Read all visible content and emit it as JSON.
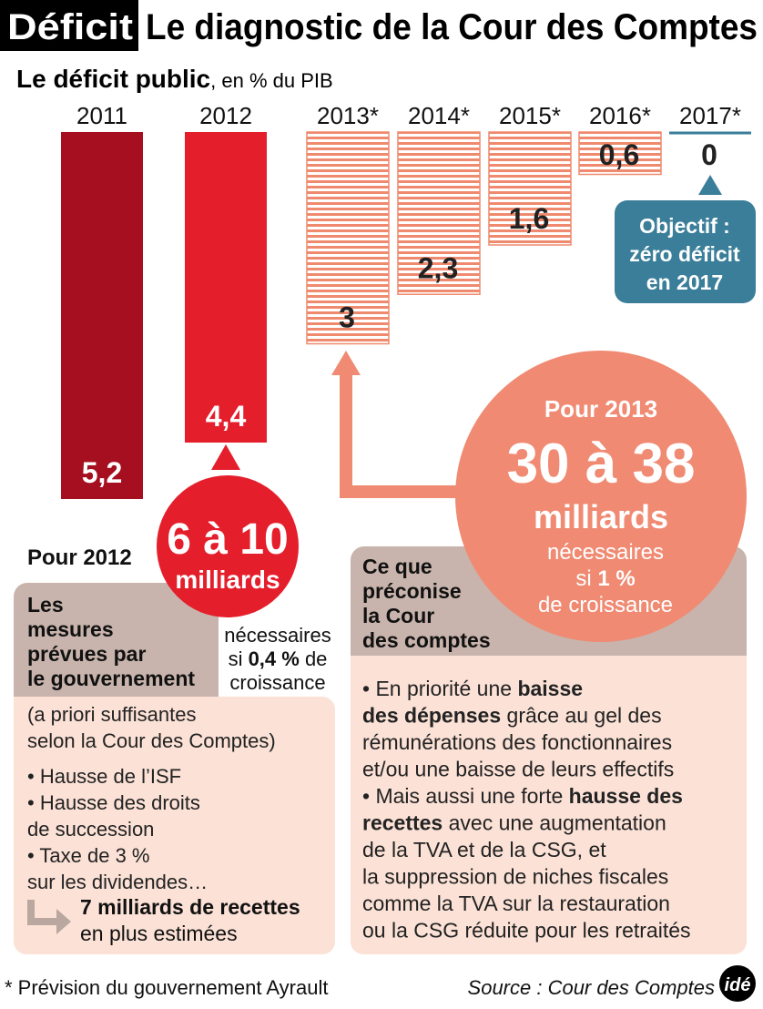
{
  "header": {
    "tag": "Déficit",
    "title": "Le diagnostic de la Cour des Comptes"
  },
  "chart_data": {
    "type": "bar",
    "title": "Le déficit public",
    "subtitle": ", en % du PIB",
    "categories": [
      "2011",
      "2012",
      "2013*",
      "2014*",
      "2015*",
      "2016*",
      "2017*"
    ],
    "values": [
      5.2,
      4.4,
      3,
      2.3,
      1.6,
      0.6,
      0
    ],
    "value_labels": [
      "5,2",
      "4,4",
      "3",
      "2,3",
      "1,6",
      "0,6",
      "0"
    ],
    "colors": [
      "#a50f1f",
      "#e41e2b",
      "#ef8a6e",
      "#ef8a6e",
      "#ef8a6e",
      "#ef8a6e",
      "#3a7e99"
    ],
    "hatched": [
      false,
      false,
      true,
      true,
      true,
      true,
      true
    ],
    "ylim": [
      0,
      5.2
    ],
    "annotation": [
      "Objectif :",
      "zéro déficit",
      "en 2017"
    ]
  },
  "callout_2012": {
    "amount": "6 à 10",
    "unit": "milliards",
    "condition": [
      [
        {
          "text": "nécessaires"
        }
      ],
      [
        {
          "text": "si "
        },
        {
          "text": "0,4 %",
          "bold": true
        },
        {
          "text": " de"
        }
      ],
      [
        {
          "text": "croissance"
        }
      ]
    ]
  },
  "callout_2013": {
    "title": "Pour 2013",
    "amount": "30 à 38",
    "unit": "milliards",
    "condition": [
      [
        {
          "text": "nécessaires"
        }
      ],
      [
        {
          "text": "si "
        },
        {
          "text": "1 %",
          "bold": true
        }
      ],
      [
        {
          "text": "de croissance"
        }
      ]
    ]
  },
  "left": {
    "title": "Pour 2012",
    "heading": [
      "Les",
      "mesures",
      "prévues par",
      "le gouvernement"
    ],
    "lines": [
      [
        {
          "text": "(a priori suffisantes"
        }
      ],
      [
        {
          "text": "selon la Cour des Comptes)"
        }
      ],
      [
        {
          "text": "• Hausse de l’ISF"
        }
      ],
      [
        {
          "text": "• Hausse des droits"
        }
      ],
      [
        {
          "text": "de succession"
        }
      ],
      [
        {
          "text": "• Taxe de 3 %"
        }
      ],
      [
        {
          "text": "sur les dividendes…"
        }
      ]
    ],
    "result": [
      [
        {
          "text": "7 milliards de recettes",
          "bold": true
        }
      ],
      [
        {
          "text": "en plus estimées"
        }
      ]
    ]
  },
  "right": {
    "heading": [
      "Ce que",
      "préconise",
      "la Cour",
      "des comptes"
    ],
    "lines": [
      [
        {
          "text": "• En priorité une "
        },
        {
          "text": "baisse",
          "bold": true
        }
      ],
      [
        {
          "text": "des dépenses",
          "bold": true
        },
        {
          "text": " grâce au gel des"
        }
      ],
      [
        {
          "text": "rémunérations des fonctionnaires"
        }
      ],
      [
        {
          "text": "et/ou une baisse de leurs effectifs"
        }
      ],
      [
        {
          "text": "• Mais aussi une forte "
        },
        {
          "text": "hausse des",
          "bold": true
        }
      ],
      [
        {
          "text": "recettes",
          "bold": true
        },
        {
          "text": " avec une augmentation"
        }
      ],
      [
        {
          "text": "de la TVA et de la CSG, et"
        }
      ],
      [
        {
          "text": "la suppression de niches fiscales"
        }
      ],
      [
        {
          "text": "comme la TVA sur la restauration"
        }
      ],
      [
        {
          "text": "ou la CSG réduite pour les retraités"
        }
      ]
    ]
  },
  "footnote": "* Prévision du gouvernement Ayrault",
  "source": "Source : Cour des Comptes",
  "logo": "idé"
}
